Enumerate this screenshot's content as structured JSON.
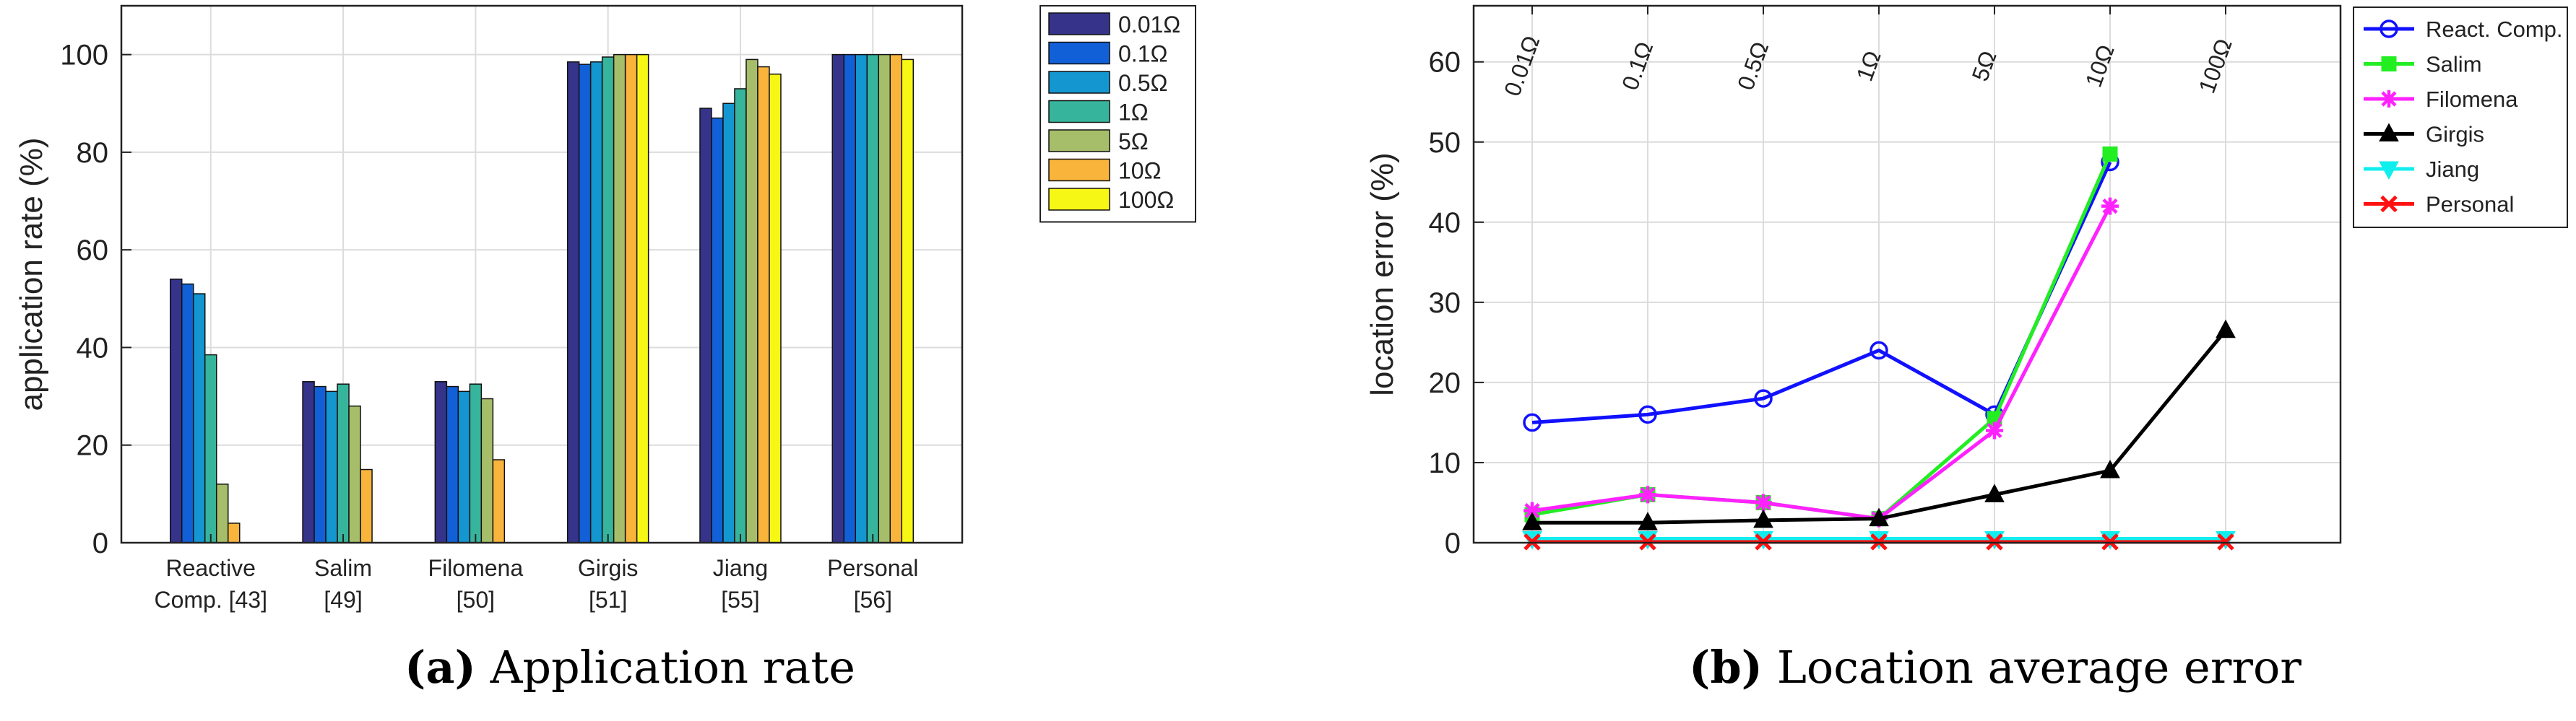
{
  "captions": {
    "a_tag": "(a)",
    "a_text": "Application rate",
    "b_tag": "(b)",
    "b_text": "Location average error"
  },
  "chart_data": [
    {
      "type": "bar",
      "ylabel": "application rate (%)",
      "xlabel": "",
      "ylim": [
        0,
        110
      ],
      "yticks": [
        0,
        20,
        40,
        60,
        80,
        100
      ],
      "grid": true,
      "legend_placement": "outside-right",
      "categories": [
        [
          "Reactive",
          "Comp. [43]"
        ],
        [
          "Salim",
          "[49]"
        ],
        [
          "Filomena",
          "[50]"
        ],
        [
          "Girgis",
          "[51]"
        ],
        [
          "Jiang",
          "[55]"
        ],
        [
          "Personal",
          "[56]"
        ]
      ],
      "series": [
        {
          "name": "0.01Ω",
          "color": "#35348a",
          "values": [
            54,
            33,
            33,
            98.5,
            89,
            100
          ]
        },
        {
          "name": "0.1Ω",
          "color": "#1260d8",
          "values": [
            53,
            32,
            32,
            98,
            87,
            100
          ]
        },
        {
          "name": "0.5Ω",
          "color": "#1496d0",
          "values": [
            51,
            31,
            31,
            98.5,
            90,
            100
          ]
        },
        {
          "name": "1Ω",
          "color": "#37b59c",
          "values": [
            38.5,
            32.5,
            32.5,
            99.5,
            93,
            100
          ]
        },
        {
          "name": "5Ω",
          "color": "#a6be6a",
          "values": [
            12,
            28,
            29.5,
            100,
            99,
            100
          ]
        },
        {
          "name": "10Ω",
          "color": "#f9b43c",
          "values": [
            4,
            15,
            17,
            100,
            97.5,
            100
          ]
        },
        {
          "name": "100Ω",
          "color": "#f7f716",
          "values": [
            0,
            0,
            0,
            100,
            96,
            99
          ]
        }
      ]
    },
    {
      "type": "line",
      "ylabel": "location error (%)",
      "xlabel": "",
      "ylim": [
        0,
        67
      ],
      "yticks": [
        0,
        10,
        20,
        30,
        40,
        50,
        60
      ],
      "grid": true,
      "legend_placement": "outside-right",
      "categories": [
        "0.01Ω",
        "0.1Ω",
        "0.5Ω",
        "1Ω",
        "5Ω",
        "10Ω",
        "100Ω"
      ],
      "series": [
        {
          "name": "React. Comp.",
          "color": "#1111ff",
          "marker": "circle",
          "values": [
            15,
            16,
            18,
            24,
            16,
            47.5,
            null
          ]
        },
        {
          "name": "Salim",
          "color": "#22ee22",
          "marker": "square",
          "values": [
            3.5,
            6,
            5,
            3,
            15.5,
            48.5,
            null
          ]
        },
        {
          "name": "Filomena",
          "color": "#ff22ff",
          "marker": "asterisk",
          "values": [
            4,
            6,
            5,
            3,
            14,
            42,
            null
          ]
        },
        {
          "name": "Girgis",
          "color": "#000000",
          "marker": "triangle-up",
          "values": [
            2.5,
            2.5,
            2.8,
            3,
            6,
            9,
            26.5
          ]
        },
        {
          "name": "Jiang",
          "color": "#11eeee",
          "marker": "triangle-down",
          "values": [
            0.5,
            0.5,
            0.5,
            0.5,
            0.5,
            0.5,
            0.5
          ]
        },
        {
          "name": "Personal",
          "color": "#ff1111",
          "marker": "x",
          "values": [
            0.1,
            0.1,
            0.1,
            0.1,
            0.1,
            0.1,
            0.1
          ]
        }
      ]
    }
  ]
}
